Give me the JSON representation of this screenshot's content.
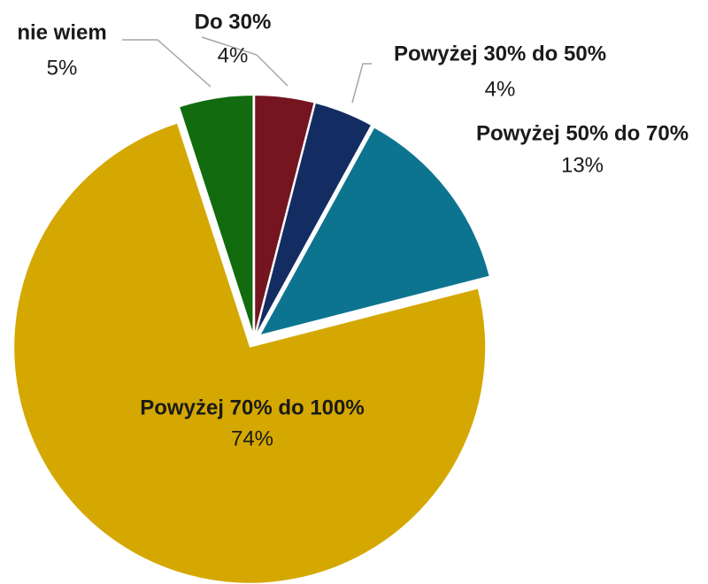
{
  "chart_data": {
    "type": "pie",
    "categories": [
      "Do 30%",
      "Powyżej 30% do 50%",
      "Powyżej 50% do 70%",
      "Powyżej 70% do 100%",
      "nie wiem"
    ],
    "values": [
      4,
      4,
      13,
      74,
      5
    ],
    "value_labels": [
      "4%",
      "4%",
      "13%",
      "74%",
      "5%"
    ],
    "colors": [
      "#741520",
      "#132d62",
      "#0d7490",
      "#d4a800",
      "#126b0e"
    ]
  }
}
